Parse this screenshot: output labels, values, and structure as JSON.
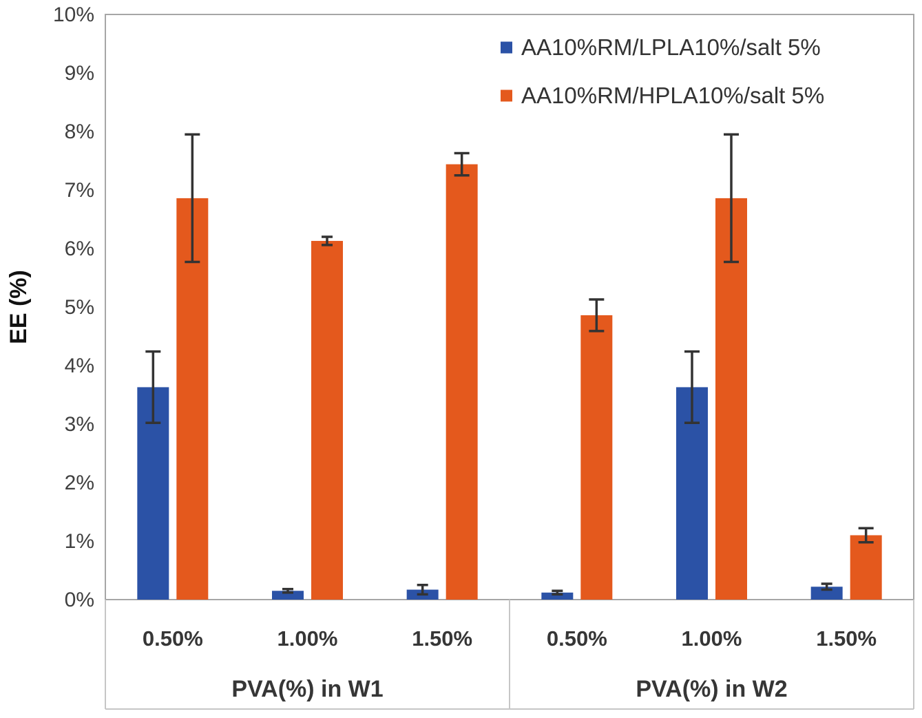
{
  "chart_data": {
    "type": "bar",
    "title": "",
    "ylabel": "EE (%)",
    "xlabel": "",
    "ylim": [
      0,
      10
    ],
    "grid": false,
    "legend_position": "top-right",
    "yticks": [
      "0%",
      "1%",
      "2%",
      "3%",
      "4%",
      "5%",
      "6%",
      "7%",
      "8%",
      "9%",
      "10%"
    ],
    "groups": [
      {
        "label": "PVA(%) in W1",
        "categories": [
          "0.50%",
          "1.00%",
          "1.50%"
        ]
      },
      {
        "label": "PVA(%) in W2",
        "categories": [
          "0.50%",
          "1.00%",
          "1.50%"
        ]
      }
    ],
    "categories_flat": [
      "0.50%",
      "1.00%",
      "1.50%",
      "0.50%",
      "1.00%",
      "1.50%"
    ],
    "series": [
      {
        "name": "AA10%RM/LPLA10%/salt 5%",
        "color": "#2B52A6",
        "values": [
          3.63,
          0.15,
          0.17,
          0.12,
          3.63,
          0.22
        ],
        "errors": [
          0.61,
          0.03,
          0.08,
          0.03,
          0.61,
          0.05
        ]
      },
      {
        "name": "AA10%RM/HPLA10%/salt 5%",
        "color": "#E4591D",
        "values": [
          6.86,
          6.13,
          7.44,
          4.86,
          6.86,
          1.1
        ],
        "errors": [
          1.09,
          0.07,
          0.19,
          0.27,
          1.09,
          0.12
        ]
      }
    ],
    "colors": {
      "error_bar": "#333333",
      "plot_border": "#a6a6a6",
      "band_line": "#c6c6c6",
      "tick_text": "#3f3f3f",
      "category_text": "#363636",
      "axis_title_text": "#111111",
      "legend_text": "#333333"
    }
  }
}
